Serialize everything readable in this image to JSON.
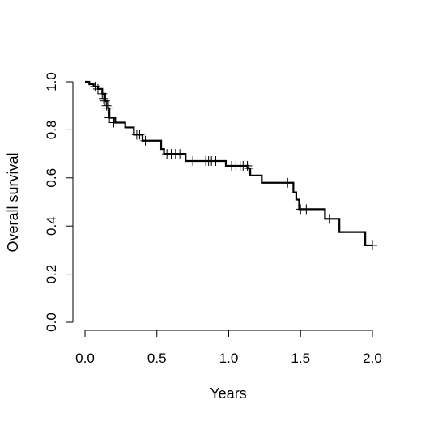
{
  "chart_data": {
    "type": "line",
    "title": "",
    "xlabel": "Years",
    "ylabel": "Overall survival",
    "xlim": [
      0,
      2
    ],
    "ylim": [
      0,
      1
    ],
    "x_ticks": [
      "0.0",
      "0.5",
      "1.0",
      "1.5",
      "2.0"
    ],
    "y_ticks": [
      "0.0",
      "0.2",
      "0.4",
      "0.6",
      "0.8",
      "1.0"
    ],
    "grid": false,
    "legend": "none",
    "line_color": "#000000",
    "series": [
      {
        "step": [
          [
            0.0,
            1.0
          ],
          [
            0.03,
            0.99
          ],
          [
            0.06,
            0.98
          ],
          [
            0.09,
            0.97
          ],
          [
            0.12,
            0.95
          ],
          [
            0.14,
            0.92
          ],
          [
            0.16,
            0.89
          ],
          [
            0.17,
            0.85
          ],
          [
            0.21,
            0.83
          ],
          [
            0.28,
            0.81
          ],
          [
            0.34,
            0.78
          ],
          [
            0.4,
            0.755
          ],
          [
            0.53,
            0.72
          ],
          [
            0.55,
            0.7
          ],
          [
            0.7,
            0.67
          ],
          [
            0.98,
            0.65
          ],
          [
            1.13,
            0.64
          ],
          [
            1.15,
            0.61
          ],
          [
            1.23,
            0.58
          ],
          [
            1.45,
            0.54
          ],
          [
            1.47,
            0.51
          ],
          [
            1.49,
            0.47
          ],
          [
            1.67,
            0.43
          ],
          [
            1.77,
            0.375
          ],
          [
            1.95,
            0.32
          ],
          [
            2.0,
            0.32
          ]
        ],
        "censored": [
          [
            0.07,
            0.98
          ],
          [
            0.09,
            0.97
          ],
          [
            0.12,
            0.95
          ],
          [
            0.13,
            0.93
          ],
          [
            0.14,
            0.92
          ],
          [
            0.15,
            0.9
          ],
          [
            0.16,
            0.89
          ],
          [
            0.17,
            0.85
          ],
          [
            0.2,
            0.83
          ],
          [
            0.36,
            0.78
          ],
          [
            0.38,
            0.78
          ],
          [
            0.42,
            0.755
          ],
          [
            0.57,
            0.7
          ],
          [
            0.6,
            0.7
          ],
          [
            0.63,
            0.7
          ],
          [
            0.66,
            0.7
          ],
          [
            0.75,
            0.67
          ],
          [
            0.84,
            0.67
          ],
          [
            0.86,
            0.67
          ],
          [
            0.88,
            0.67
          ],
          [
            0.91,
            0.67
          ],
          [
            1.02,
            0.65
          ],
          [
            1.05,
            0.65
          ],
          [
            1.08,
            0.65
          ],
          [
            1.1,
            0.65
          ],
          [
            1.13,
            0.65
          ],
          [
            1.14,
            0.64
          ],
          [
            1.41,
            0.58
          ],
          [
            1.5,
            0.47
          ],
          [
            1.54,
            0.47
          ],
          [
            1.7,
            0.43
          ],
          [
            2.0,
            0.32
          ]
        ]
      }
    ]
  }
}
